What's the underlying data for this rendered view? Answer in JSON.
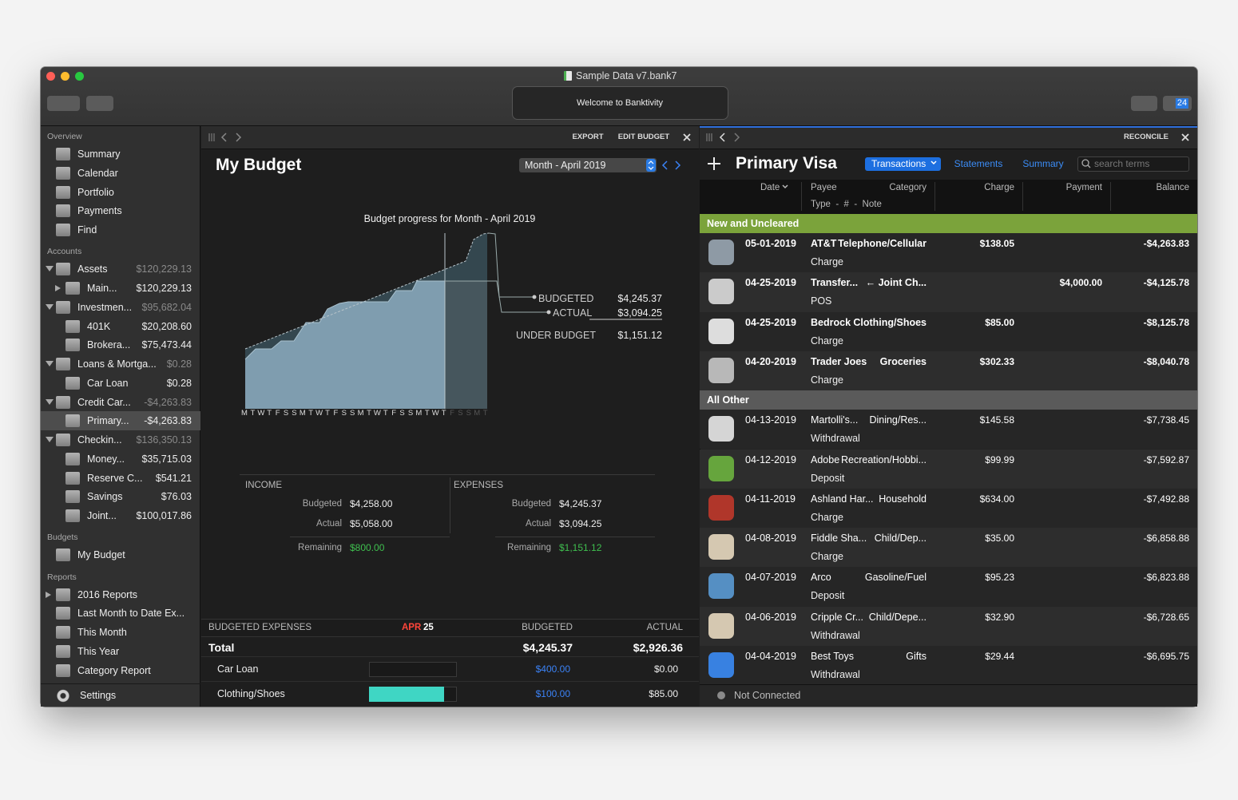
{
  "window": {
    "title": "Sample Data v7.bank7",
    "welcome": "Welcome to Banktivity",
    "calendar_badge": "24"
  },
  "sidebar": {
    "sections": [
      {
        "title": "Overview",
        "items": [
          {
            "name": "Summary"
          },
          {
            "name": "Calendar"
          },
          {
            "name": "Portfolio"
          },
          {
            "name": "Payments"
          },
          {
            "name": "Find"
          }
        ]
      },
      {
        "title": "Accounts",
        "items": [
          {
            "name": "Assets",
            "amount": "$120,229.13",
            "expanded": true,
            "children": [
              {
                "name": "Main...",
                "amount": "$120,229.13",
                "expanded": false
              }
            ]
          },
          {
            "name": "Investmen...",
            "amount": "$95,682.04",
            "expanded": true,
            "children": [
              {
                "name": "401K",
                "amount": "$20,208.60"
              },
              {
                "name": "Brokera...",
                "amount": "$75,473.44"
              }
            ]
          },
          {
            "name": "Loans & Mortga...",
            "amount": "$0.28",
            "expanded": true,
            "children": [
              {
                "name": "Car Loan",
                "amount": "$0.28"
              }
            ]
          },
          {
            "name": "Credit Car...",
            "amount": "-$4,263.83",
            "expanded": true,
            "children": [
              {
                "name": "Primary...",
                "amount": "-$4,263.83",
                "selected": true
              }
            ]
          },
          {
            "name": "Checkin...",
            "amount": "$136,350.13",
            "expanded": true,
            "children": [
              {
                "name": "Money...",
                "amount": "$35,715.03"
              },
              {
                "name": "Reserve C...",
                "amount": "$541.21"
              },
              {
                "name": "Savings",
                "amount": "$76.03"
              },
              {
                "name": "Joint...",
                "amount": "$100,017.86"
              }
            ]
          }
        ]
      },
      {
        "title": "Budgets",
        "items": [
          {
            "name": "My Budget"
          }
        ]
      },
      {
        "title": "Reports",
        "items": [
          {
            "name": "2016 Reports",
            "expanded": false
          },
          {
            "name": "Last Month to Date Ex..."
          },
          {
            "name": "This Month"
          },
          {
            "name": "This Year"
          },
          {
            "name": "Category Report"
          }
        ]
      }
    ],
    "settings": "Settings"
  },
  "budget": {
    "toolbar": {
      "export": "EXPORT",
      "edit": "EDIT BUDGET"
    },
    "title": "My Budget",
    "period": "Month - April 2019",
    "chart": {
      "title": "Budget progress for Month - April 2019",
      "days": [
        "M",
        "T",
        "W",
        "T",
        "F",
        "S",
        "S",
        "M",
        "T",
        "W",
        "T",
        "F",
        "S",
        "S",
        "M",
        "T",
        "W",
        "T",
        "F",
        "S",
        "S",
        "M",
        "T",
        "W",
        "T",
        "F",
        "S",
        "S",
        "M",
        "T"
      ],
      "budgeted_label": "BUDGETED",
      "budgeted": "$4,245.37",
      "actual_label": "ACTUAL",
      "actual": "$3,094.25",
      "under_label": "UNDER BUDGET",
      "under": "$1,151.12"
    },
    "income": {
      "title": "INCOME",
      "rows": [
        {
          "label": "Budgeted",
          "value": "$4,258.00"
        },
        {
          "label": "Actual",
          "value": "$5,058.00"
        },
        {
          "label": "Remaining",
          "value": "$800.00"
        }
      ]
    },
    "expenses": {
      "title": "EXPENSES",
      "rows": [
        {
          "label": "Budgeted",
          "value": "$4,245.37"
        },
        {
          "label": "Actual",
          "value": "$3,094.25"
        },
        {
          "label": "Remaining",
          "value": "$1,151.12"
        }
      ]
    },
    "table": {
      "header": {
        "title": "BUDGETED EXPENSES",
        "month": "APR",
        "day": "25",
        "budgeted": "BUDGETED",
        "actual": "ACTUAL"
      },
      "total": {
        "label": "Total",
        "budgeted": "$4,245.37",
        "actual": "$2,926.36"
      },
      "rows": [
        {
          "name": "Car Loan",
          "budgeted": "$400.00",
          "actual": "$0.00"
        },
        {
          "name": "Clothing/Shoes",
          "budgeted": "$100.00",
          "actual": "$85.00"
        }
      ]
    }
  },
  "register": {
    "toolbar": {
      "reconcile": "RECONCILE"
    },
    "title": "Primary Visa",
    "tabs": [
      "Transactions",
      "Statements",
      "Summary"
    ],
    "search": "search terms",
    "columns": {
      "date": "Date",
      "payee": "Payee",
      "category": "Category",
      "charge": "Charge",
      "payment": "Payment",
      "balance": "Balance",
      "subheader": "Type  -  #  -  Note"
    },
    "groups": [
      {
        "title": "New and Uncleared",
        "color": "#7ba33b",
        "rows": [
          {
            "date": "05-01-2019",
            "payee": "AT&T",
            "category": "Telephone/Cellular",
            "charge": "$138.05",
            "balance": "-$4,263.83",
            "type": "Charge",
            "status": "uncleared",
            "flagged": true
          },
          {
            "date": "04-25-2019",
            "payee": "Transfer...",
            "category": "← Joint Ch...",
            "payment": "$4,000.00",
            "balance": "-$4,125.78",
            "type": "POS",
            "status": "uncleared"
          },
          {
            "date": "04-25-2019",
            "payee": "Bedrock",
            "category": "Clothing/Shoes",
            "charge": "$85.00",
            "balance": "-$8,125.78",
            "type": "Charge",
            "status": "uncleared"
          },
          {
            "date": "04-20-2019",
            "payee": "Trader Joes",
            "category": "Groceries",
            "charge": "$302.33",
            "balance": "-$8,040.78",
            "type": "Charge",
            "status": "uncleared"
          }
        ]
      },
      {
        "title": "All Other",
        "color": "#5a5a5a",
        "rows": [
          {
            "date": "04-13-2019",
            "payee": "Martolli's...",
            "category": "Dining/Res...",
            "charge": "$145.58",
            "balance": "-$7,738.45",
            "type": "Withdrawal",
            "status": "cleared"
          },
          {
            "date": "04-12-2019",
            "payee": "Adobe",
            "category": "Recreation/Hobbi...",
            "charge": "$99.99",
            "balance": "-$7,592.87",
            "type": "Deposit",
            "status": "cleared"
          },
          {
            "date": "04-11-2019",
            "payee": "Ashland Har...",
            "category": "Household",
            "charge": "$634.00",
            "balance": "-$7,492.88",
            "type": "Charge",
            "status": "cleared"
          },
          {
            "date": "04-08-2019",
            "payee": "Fiddle Sha...",
            "category": "Child/Dep...",
            "charge": "$35.00",
            "balance": "-$6,858.88",
            "type": "Charge",
            "status": "cleared"
          },
          {
            "date": "04-07-2019",
            "payee": "Arco",
            "category": "Gasoline/Fuel",
            "charge": "$95.23",
            "balance": "-$6,823.88",
            "type": "Deposit",
            "status": "cleared"
          },
          {
            "date": "04-06-2019",
            "payee": "Cripple Cr...",
            "category": "Child/Depe...",
            "charge": "$32.90",
            "balance": "-$6,728.65",
            "type": "Withdrawal",
            "status": "cleared"
          },
          {
            "date": "04-04-2019",
            "payee": "Best Toys",
            "category": "Gifts",
            "charge": "$29.44",
            "balance": "-$6,695.75",
            "type": "Withdrawal",
            "status": "cleared"
          }
        ]
      }
    ],
    "status": "Not Connected"
  }
}
